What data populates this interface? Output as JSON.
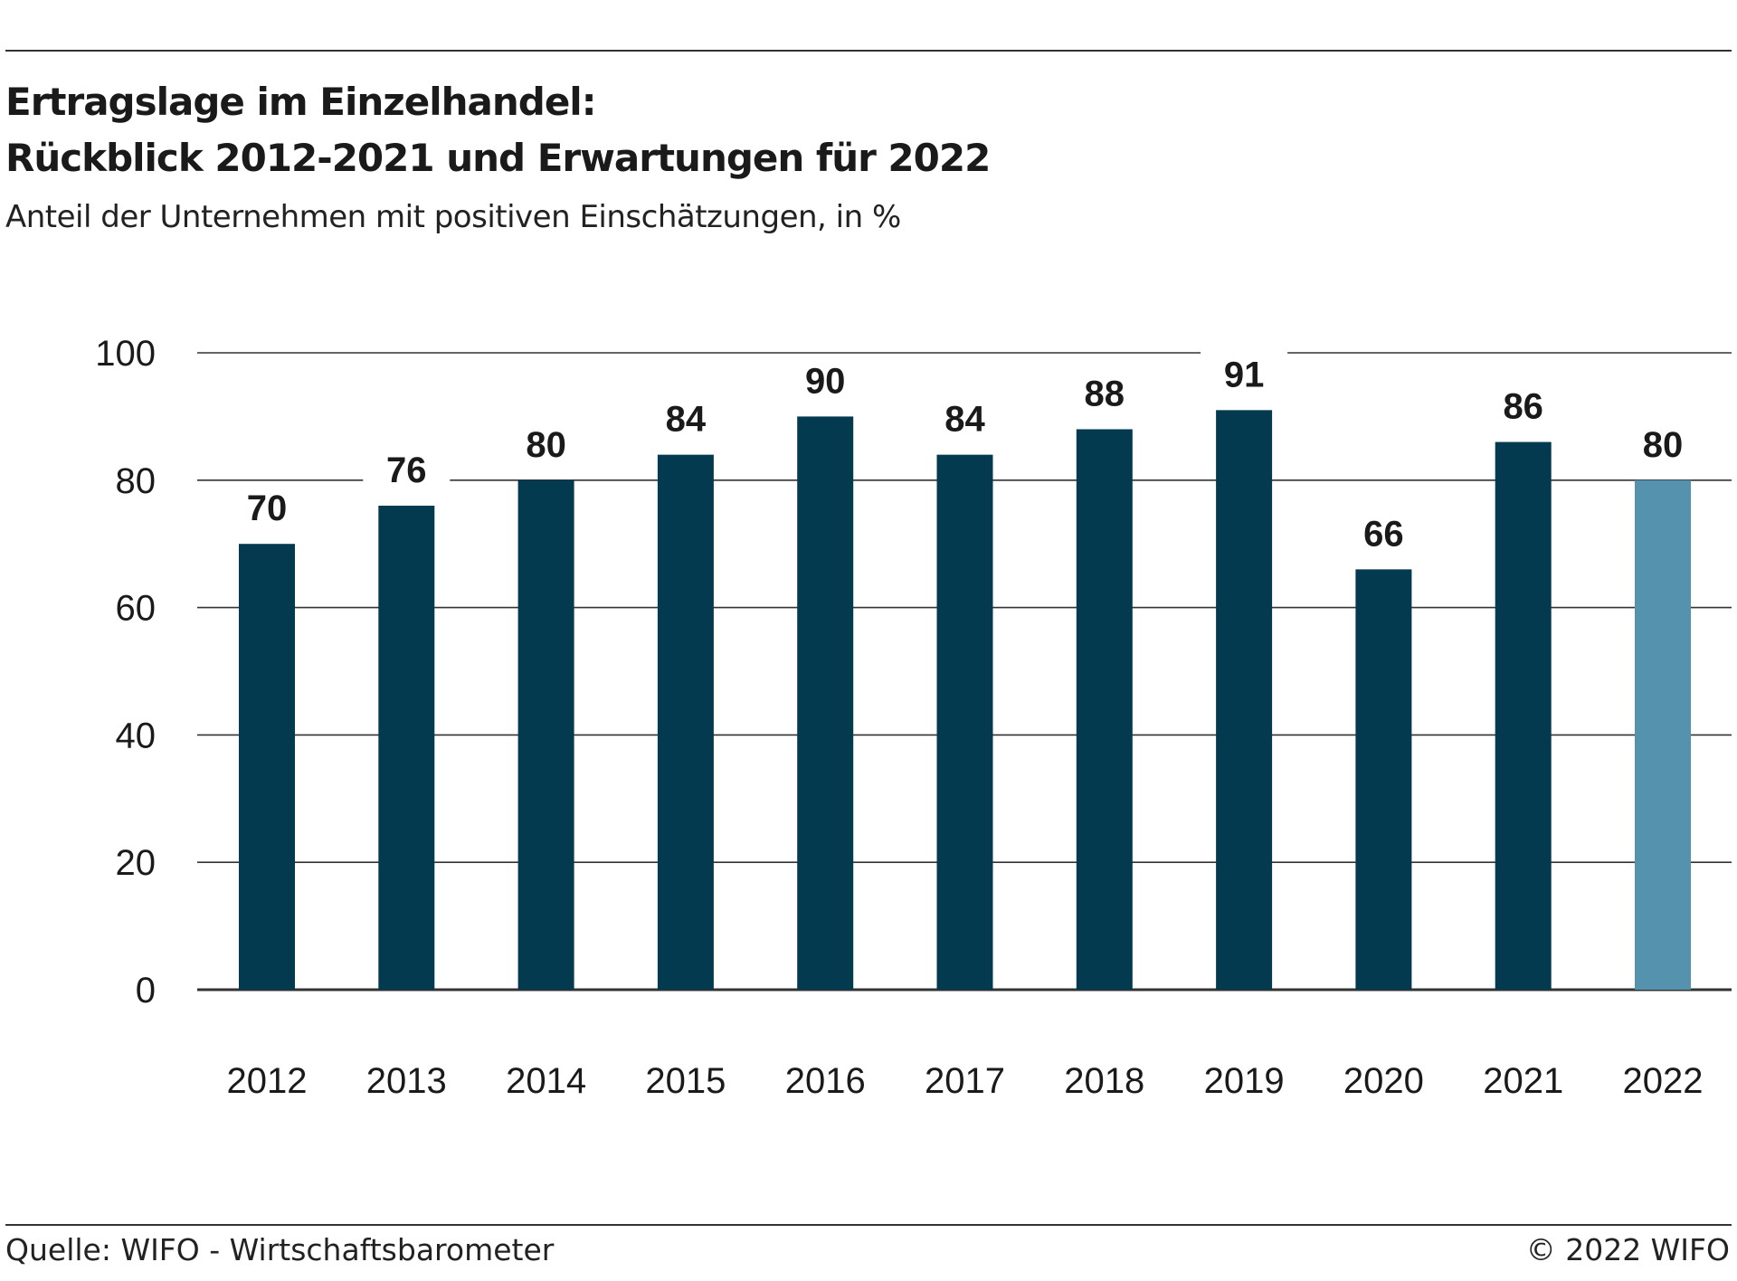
{
  "header": {
    "title_line1": "Ertragslage im Einzelhandel:",
    "title_line2": "Rückblick 2012-2021 und Erwartungen für 2022",
    "subtitle": "Anteil der Unternehmen mit positiven Einschätzungen, in %"
  },
  "footer": {
    "source": "Quelle: WIFO - Wirtschaftsbarometer",
    "copyright": "© 2022 WIFO"
  },
  "colors": {
    "bar_actual": "#043a50",
    "bar_expectation": "#5592ad",
    "gridline": "#333333",
    "text": "#1a1a1a"
  },
  "chart_data": {
    "type": "bar",
    "title": "Ertragslage im Einzelhandel: Rückblick 2012-2021 und Erwartungen für 2022",
    "subtitle": "Anteil der Unternehmen mit positiven Einschätzungen, in %",
    "xlabel": "",
    "ylabel": "",
    "categories": [
      "2012",
      "2013",
      "2014",
      "2015",
      "2016",
      "2017",
      "2018",
      "2019",
      "2020",
      "2021",
      "2022"
    ],
    "values": [
      70,
      76,
      80,
      84,
      90,
      84,
      88,
      91,
      66,
      86,
      80
    ],
    "value_labels": [
      "70",
      "76",
      "80",
      "84",
      "90",
      "84",
      "88",
      "91",
      "66",
      "86",
      "80"
    ],
    "highlight_category": "2022",
    "ylim": [
      0,
      100
    ],
    "yticks": [
      0,
      20,
      40,
      60,
      80,
      100
    ],
    "ytick_labels": [
      "0",
      "20",
      "40",
      "60",
      "80",
      "100"
    ],
    "grid": true,
    "legend": "none"
  }
}
